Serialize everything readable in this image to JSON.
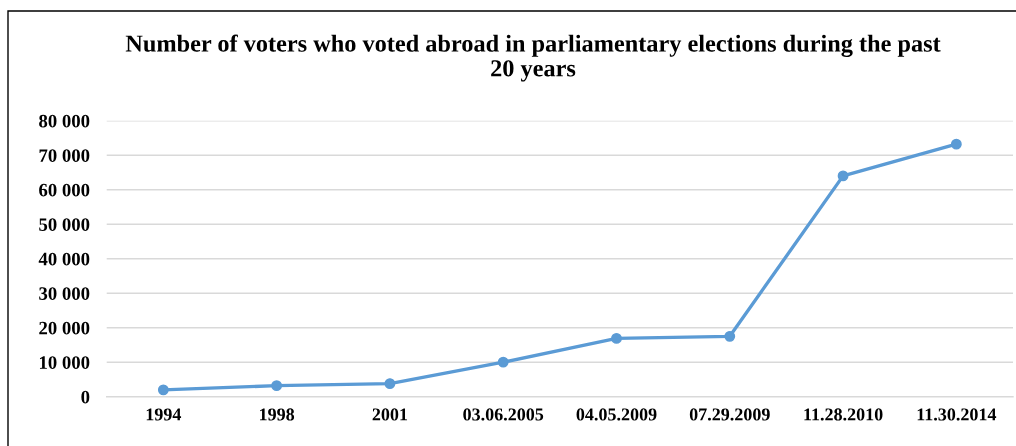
{
  "chart_data": {
    "type": "line",
    "title": "Number of voters who voted abroad in parliamentary elections during the past\n20 years",
    "categories": [
      "1994",
      "1998",
      "2001",
      "03.06.2005",
      "04.05.2009",
      "07.29.2009",
      "11.28.2010",
      "11.30.2014"
    ],
    "series": [
      {
        "color": "#5b9bd5",
        "values": [
          2000,
          3200,
          3800,
          10000,
          16900,
          17500,
          64000,
          73200
        ]
      }
    ],
    "ylim": [
      0,
      80000
    ],
    "yticks": [
      {
        "value": 0,
        "label": "0"
      },
      {
        "value": 10000,
        "label": "10 000"
      },
      {
        "value": 20000,
        "label": "20 000"
      },
      {
        "value": 30000,
        "label": "30 000"
      },
      {
        "value": 40000,
        "label": "40 000"
      },
      {
        "value": 50000,
        "label": "50 000"
      },
      {
        "value": 60000,
        "label": "60 000"
      },
      {
        "value": 70000,
        "label": "70 000"
      },
      {
        "value": 80000,
        "label": "80 000"
      }
    ],
    "grid": "y",
    "marker": "circle",
    "line_style": "solid"
  }
}
